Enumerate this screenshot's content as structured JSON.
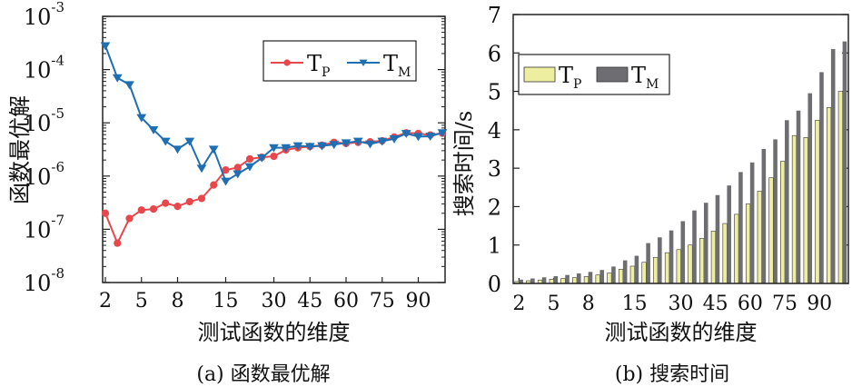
{
  "chart_data": [
    {
      "type": "line",
      "caption": "(a) 函数最优解",
      "xlabel": "测试函数的维度",
      "ylabel": "函数最优解",
      "categories": [
        "2",
        "3",
        "4",
        "5",
        "6",
        "7",
        "8",
        "9",
        "10",
        "13",
        "15",
        "18",
        "20",
        "25",
        "30",
        "35",
        "40",
        "45",
        "50",
        "55",
        "60",
        "65",
        "70",
        "75",
        "80",
        "85",
        "90",
        "95",
        "100"
      ],
      "x_tick_labels": [
        "2",
        "5",
        "8",
        "15",
        "30",
        "45",
        "60",
        "75",
        "90"
      ],
      "x_tick_indices": [
        0,
        3,
        6,
        10,
        14,
        17,
        20,
        23,
        26
      ],
      "yscale": "log",
      "ylim_exponents": [
        -8,
        -3
      ],
      "y_tick_labels": [
        {
          "base": "10",
          "exp": "-8"
        },
        {
          "base": "10",
          "exp": "-7"
        },
        {
          "base": "10",
          "exp": "-6"
        },
        {
          "base": "10",
          "exp": "-5"
        },
        {
          "base": "10",
          "exp": "-4"
        },
        {
          "base": "10",
          "exp": "-3"
        }
      ],
      "legend": {
        "placement": "top-right"
      },
      "series": [
        {
          "name_base": "T",
          "name_sub": "P",
          "color": "#e8474c",
          "marker": "circle",
          "values": [
            2e-07,
            5.5e-08,
            1.6e-07,
            2.3e-07,
            2.4e-07,
            3.1e-07,
            2.7e-07,
            3.3e-07,
            3.8e-07,
            6.8e-07,
            1.3e-06,
            1.45e-06,
            2.1e-06,
            2.25e-06,
            2.35e-06,
            3.1e-06,
            3.4e-06,
            3.6e-06,
            3.8e-06,
            4.3e-06,
            4.1e-06,
            4.3e-06,
            4.4e-06,
            4.6e-06,
            5.4e-06,
            6.5e-06,
            6.3e-06,
            5.9e-06,
            6.4e-06
          ]
        },
        {
          "name_base": "T",
          "name_sub": "M",
          "color": "#1f6fb2",
          "marker": "triangle-down",
          "values": [
            0.00028,
            7e-05,
            5.2e-05,
            1.25e-05,
            7.4e-06,
            4.5e-06,
            3.2e-06,
            4.5e-06,
            1.4e-06,
            3.2e-06,
            8e-07,
            1.1e-06,
            1.5e-06,
            2.2e-06,
            3.4e-06,
            3.4e-06,
            3.7e-06,
            3.6e-06,
            3.7e-06,
            3.9e-06,
            4.2e-06,
            4.5e-06,
            4e-06,
            4.5e-06,
            5e-06,
            6.3e-06,
            5.5e-06,
            5.6e-06,
            6.5e-06
          ]
        }
      ]
    },
    {
      "type": "bar",
      "caption": "(b) 搜索时间",
      "xlabel": "测试函数的维度",
      "ylabel": "搜索时间/s",
      "categories": [
        "2",
        "3",
        "4",
        "5",
        "6",
        "7",
        "8",
        "9",
        "10",
        "13",
        "15",
        "18",
        "20",
        "25",
        "30",
        "35",
        "40",
        "45",
        "50",
        "55",
        "60",
        "65",
        "70",
        "75",
        "80",
        "85",
        "90",
        "95",
        "100"
      ],
      "x_tick_labels": [
        "2",
        "5",
        "8",
        "15",
        "30",
        "45",
        "60",
        "75",
        "90"
      ],
      "x_tick_indices": [
        0,
        3,
        6,
        10,
        14,
        17,
        20,
        23,
        26
      ],
      "ylim": [
        0,
        7
      ],
      "y_ticks": [
        0,
        1,
        2,
        3,
        4,
        5,
        6,
        7
      ],
      "legend": {
        "placement": "top-left"
      },
      "series": [
        {
          "name_base": "T",
          "name_sub": "P",
          "color": "#eeeea0",
          "values": [
            0.05,
            0.07,
            0.09,
            0.11,
            0.13,
            0.15,
            0.18,
            0.22,
            0.27,
            0.37,
            0.45,
            0.55,
            0.68,
            0.8,
            0.88,
            1.0,
            1.17,
            1.36,
            1.56,
            1.8,
            2.07,
            2.4,
            2.75,
            3.18,
            3.85,
            3.8,
            4.25,
            4.58,
            5.0
          ]
        },
        {
          "name_base": "T",
          "name_sub": "M",
          "color": "#6e6e72",
          "values": [
            0.1,
            0.13,
            0.16,
            0.19,
            0.22,
            0.26,
            0.3,
            0.35,
            0.44,
            0.6,
            0.72,
            1.05,
            1.2,
            1.38,
            1.62,
            1.9,
            2.1,
            2.3,
            2.55,
            2.9,
            3.15,
            3.5,
            3.75,
            4.25,
            4.5,
            4.95,
            5.5,
            6.1,
            6.3
          ]
        }
      ]
    }
  ]
}
